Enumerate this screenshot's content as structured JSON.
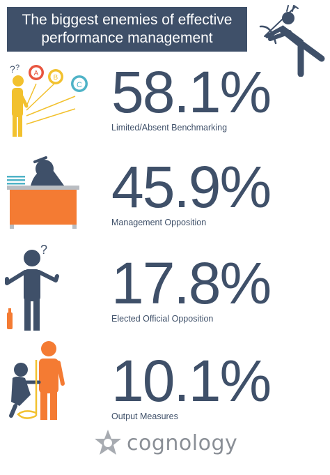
{
  "header": {
    "title_line1": "The biggest enemies of effective",
    "title_line2": "performance management"
  },
  "stats": [
    {
      "value": "58.1%",
      "label": "Limited/Absent Benchmarking",
      "icon": "confused-person-abc-icon"
    },
    {
      "value": "45.9%",
      "label": "Management Opposition",
      "icon": "person-head-on-desk-icon"
    },
    {
      "value": "17.8%",
      "label": "Elected Official Opposition",
      "icon": "shrugging-person-icon"
    },
    {
      "value": "10.1%",
      "label": "Output Measures",
      "icon": "person-measuring-icon"
    }
  ],
  "abc_markers": [
    "A",
    "B",
    "C"
  ],
  "question_mark": "?",
  "brand": {
    "name": "cognology"
  },
  "colors": {
    "navy": "#3f5069",
    "yellow": "#f2c12e",
    "orange": "#f47b33",
    "red": "#e8553f",
    "teal": "#4fb3c7",
    "grey": "#8a8f96"
  }
}
